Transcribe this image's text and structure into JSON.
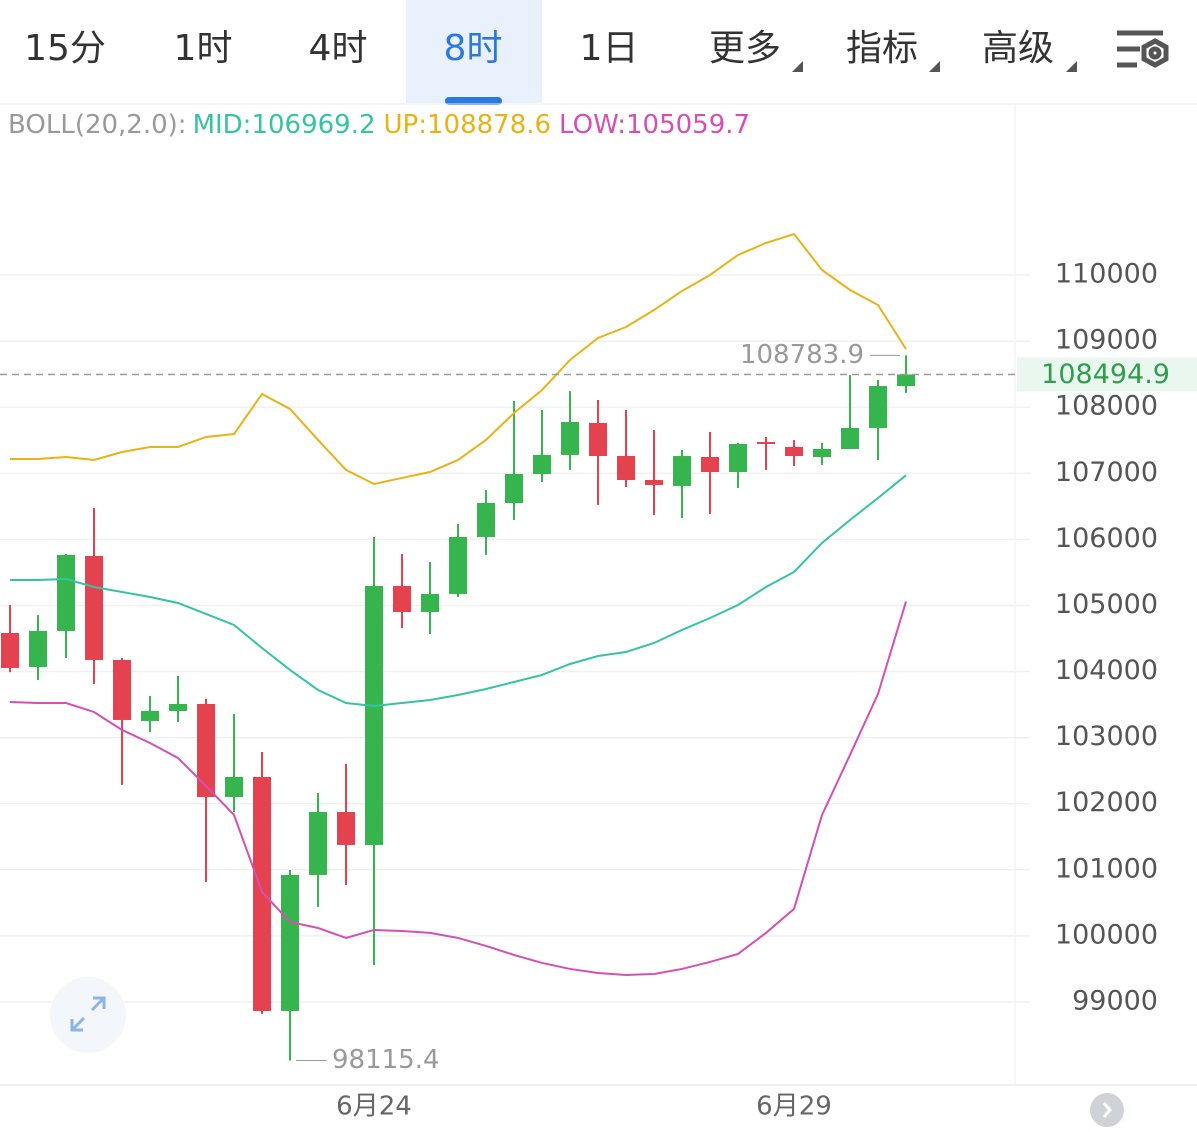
{
  "tabs": [
    "15分",
    "1时",
    "4时",
    "8时",
    "1日",
    "更多",
    "指标",
    "高级"
  ],
  "selected_tab": 3,
  "chart_data": {
    "type": "candlestick",
    "indicator_label": "BOLL(20,2.0):",
    "categories": [
      null,
      null,
      null,
      null,
      null,
      null,
      null,
      null,
      null,
      null,
      null,
      null,
      null,
      "6月24",
      null,
      null,
      null,
      null,
      null,
      null,
      null,
      null,
      null,
      null,
      null,
      null,
      null,
      null,
      "6月29",
      null,
      null,
      null,
      null
    ],
    "open": [
      104583,
      104069,
      104614,
      105748,
      104175,
      103252,
      103403,
      103509,
      102102,
      102405,
      98864,
      100922,
      101875,
      101376,
      105295,
      104901,
      105174,
      106036,
      106550,
      106989,
      107277,
      107761,
      107261,
      106898,
      106808,
      107246,
      107019,
      107473,
      107398,
      107246,
      107367,
      107685,
      108320
    ],
    "high": [
      105007,
      104856,
      105780,
      106475,
      104205,
      103630,
      103933,
      103585,
      103358,
      102783,
      100998,
      102163,
      102601,
      106036,
      105779,
      105658,
      106233,
      106747,
      108094,
      107957,
      108245,
      108109,
      107957,
      107655,
      107352,
      107625,
      107458,
      107549,
      107503,
      107458,
      108487,
      108411,
      108783.9
    ],
    "low": [
      103990,
      103872,
      104205,
      103812,
      102284,
      103086,
      103237,
      100816,
      101875,
      98819,
      98115.4,
      100438,
      100770,
      99560,
      104659,
      104568,
      105128,
      105764,
      106293,
      106868,
      107050,
      106520,
      106792,
      106369,
      106323,
      106384,
      106777,
      107050,
      107110,
      107125,
      107367,
      107201,
      108215
    ],
    "close": [
      104054,
      104614,
      105764,
      104175,
      103267,
      103403,
      103509,
      102102,
      102405,
      98864,
      100922,
      101875,
      101376,
      105295,
      104901,
      105174,
      106036,
      106550,
      106989,
      107277,
      107776,
      107261,
      106898,
      106823,
      107261,
      107019,
      107443,
      107443,
      107261,
      107367,
      107685,
      108320,
      108494.9
    ],
    "up_color": "#36b54f",
    "down_color": "#e5424f",
    "series": [
      {
        "name": "MID:106969.2",
        "color": "#35c4a2",
        "values": [
          105385,
          105385,
          105400,
          105279,
          105204,
          105128,
          105037,
          104871,
          104705,
          104356,
          104024,
          103721,
          103524,
          103479,
          103524,
          103570,
          103645,
          103736,
          103842,
          103948,
          104114,
          104235,
          104296,
          104432,
          104629,
          104810,
          105007,
          105279,
          105506,
          105945,
          106293,
          106626,
          106969.2
        ]
      },
      {
        "name": "UP:108878.6",
        "color": "#e9b318",
        "values": [
          107216,
          107216,
          107246,
          107201,
          107322,
          107398,
          107398,
          107549,
          107594,
          108200,
          107973,
          107504,
          107050,
          106838,
          106929,
          107019,
          107201,
          107504,
          107912,
          108260,
          108714,
          109047,
          109213,
          109470,
          109758,
          110000,
          110303,
          110484,
          110620,
          110076,
          109773,
          109546,
          108878.6
        ]
      },
      {
        "name": "LOW:105059.7",
        "color": "#d64fb2",
        "values": [
          103539,
          103524,
          103524,
          103388,
          103116,
          102919,
          102692,
          102268,
          101830,
          100665,
          100211,
          100120,
          99969,
          100090,
          100075,
          100045,
          99969,
          99848,
          99712,
          99591,
          99500,
          99439,
          99409,
          99424,
          99500,
          99606,
          99727,
          100045,
          100408,
          101830,
          102738,
          103661,
          105059.7
        ]
      }
    ],
    "ylim": [
      97744,
      112572
    ],
    "yticks": [
      99000,
      100000,
      101000,
      102000,
      103000,
      104000,
      105000,
      106000,
      107000,
      108000,
      109000,
      110000
    ],
    "grid": true
  }
}
